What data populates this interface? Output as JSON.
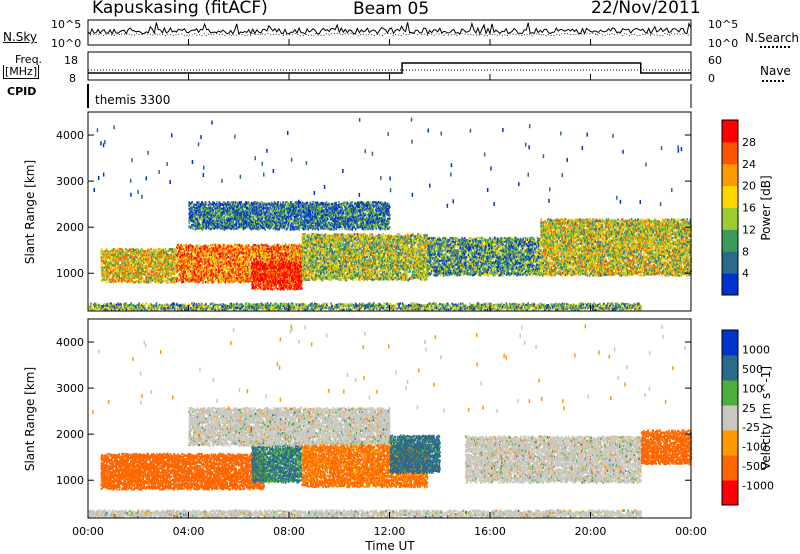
{
  "header": {
    "station": "Kapuskasing (fitACF)",
    "beam": "Beam 05",
    "date": "22/Nov/2011"
  },
  "noise_panel": {
    "left_label": "N.Sky",
    "right_label": "N.Search",
    "left_ticks": [
      "10^5",
      "10^0"
    ],
    "right_ticks": [
      "10^5",
      "10^0"
    ]
  },
  "freq_panel": {
    "left_label_1": "Freq.",
    "left_label_2": "[MHz]",
    "right_label": "Nave",
    "left_ticks": [
      "18",
      "8"
    ],
    "right_ticks": [
      "60",
      "0"
    ]
  },
  "cpid_panel": {
    "label": "CPID",
    "program": "themis 3300"
  },
  "colors": {
    "power": [
      "#0033cc",
      "#2a6a8a",
      "#3d9a5a",
      "#9acd32",
      "#ffd700",
      "#ff9900",
      "#ff5500",
      "#ff0000"
    ],
    "velocity": [
      "#0033cc",
      "#2a6a8a",
      "#4caf3a",
      "#c8c8c0",
      "#ff9900",
      "#ff6600",
      "#ff0000"
    ],
    "ground_scatter": "#c8c8c0"
  },
  "chart_data": [
    {
      "type": "heatmap",
      "title": "",
      "xlabel": "Time UT",
      "ylabel": "Slant Range [km]",
      "xticks": [
        "00:00",
        "04:00",
        "08:00",
        "12:00",
        "16:00",
        "20:00",
        "00:00"
      ],
      "yticks": [
        "1000",
        "2000",
        "3000",
        "4000"
      ],
      "xlim_hours": [
        0,
        24
      ],
      "ylim_km": [
        180,
        4500
      ],
      "colorbar": {
        "label": "Power [dB]",
        "ticks": [
          "4",
          "8",
          "12",
          "16",
          "20",
          "24",
          "28"
        ],
        "range": [
          0,
          30
        ]
      },
      "bands": [
        {
          "t0": 0.5,
          "t1": 3.5,
          "r0": 850,
          "r1": 1550,
          "level": 0.55
        },
        {
          "t0": 3.5,
          "t1": 8.5,
          "r0": 850,
          "r1": 1650,
          "level": 0.75
        },
        {
          "t0": 6.5,
          "t1": 8.5,
          "r0": 700,
          "r1": 1300,
          "level": 0.95
        },
        {
          "t0": 8.5,
          "t1": 13.5,
          "r0": 900,
          "r1": 1900,
          "level": 0.45
        },
        {
          "t0": 4.0,
          "t1": 12.0,
          "r0": 2000,
          "r1": 2600,
          "level": 0.2
        },
        {
          "t0": 13.5,
          "t1": 18.0,
          "r0": 1000,
          "r1": 1800,
          "level": 0.3
        },
        {
          "t0": 18.0,
          "t1": 24.0,
          "r0": 1000,
          "r1": 2200,
          "level": 0.5
        },
        {
          "t0": 0.0,
          "t1": 22.0,
          "r0": 250,
          "r1": 400,
          "level": 0.35
        }
      ]
    },
    {
      "type": "heatmap",
      "title": "",
      "xlabel": "Time UT",
      "ylabel": "Slant Range [km]",
      "xticks": [
        "00:00",
        "04:00",
        "08:00",
        "12:00",
        "16:00",
        "20:00",
        "00:00"
      ],
      "yticks": [
        "1000",
        "2000",
        "3000",
        "4000"
      ],
      "xlim_hours": [
        0,
        24
      ],
      "ylim_km": [
        180,
        4500
      ],
      "colorbar": {
        "label": "Velocity [m s^-1]",
        "ticks": [
          "1000",
          "500",
          "100",
          "25",
          "-25",
          "-100",
          "-500",
          "-1000"
        ]
      },
      "bands": [
        {
          "t0": 0.5,
          "t1": 7.0,
          "r0": 850,
          "r1": 1600,
          "level": -300
        },
        {
          "t0": 6.5,
          "t1": 8.5,
          "r0": 1000,
          "r1": 1800,
          "level": 150
        },
        {
          "t0": 4.0,
          "t1": 12.0,
          "r0": 1800,
          "r1": 2600,
          "level": 0
        },
        {
          "t0": 8.5,
          "t1": 13.5,
          "r0": 900,
          "r1": 1800,
          "level": -150
        },
        {
          "t0": 12.0,
          "t1": 14.0,
          "r0": 1200,
          "r1": 2000,
          "level": 200
        },
        {
          "t0": 15.0,
          "t1": 22.0,
          "r0": 1000,
          "r1": 2000,
          "level": 0
        },
        {
          "t0": 22.0,
          "t1": 24.0,
          "r0": 1400,
          "r1": 2100,
          "level": -300
        },
        {
          "t0": 0.0,
          "t1": 22.0,
          "r0": 250,
          "r1": 400,
          "level": 0
        }
      ]
    }
  ]
}
